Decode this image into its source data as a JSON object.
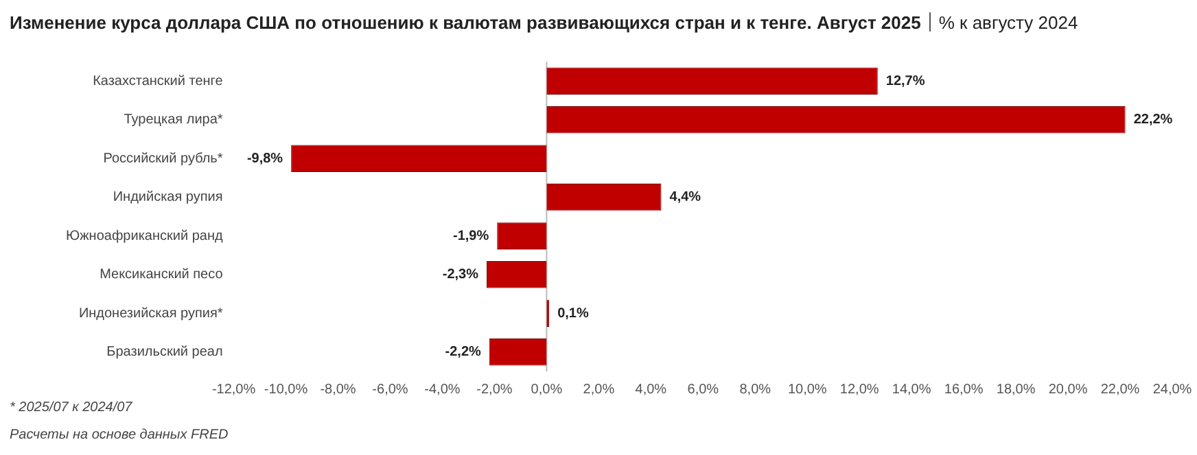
{
  "chart_data": {
    "type": "bar",
    "orientation": "horizontal",
    "title": "Изменение курса доллара США по отношению к валютам развивающихся стран и к тенге. Август 2025",
    "subtitle": "% к августу 2024",
    "categories": [
      "Казахстанский тенге",
      "Турецкая лира*",
      "Российский рубль*",
      "Индийская рупия",
      "Южноафриканский ранд",
      "Мексиканский песо",
      "Индонезийская рупия*",
      "Бразильский реал"
    ],
    "values": [
      12.7,
      22.2,
      -9.8,
      4.4,
      -1.9,
      -2.3,
      0.1,
      -2.2
    ],
    "value_labels": [
      "12,7%",
      "22,2%",
      "-9,8%",
      "4,4%",
      "-1,9%",
      "-2,3%",
      "0,1%",
      "-2,2%"
    ],
    "color": "#c00000",
    "xlim": [
      -12,
      24
    ],
    "xticks": [
      {
        "value": -12,
        "label": "-12,0%"
      },
      {
        "value": -10,
        "label": "-10,0%"
      },
      {
        "value": -8,
        "label": "-8,0%"
      },
      {
        "value": -6,
        "label": "-6,0%"
      },
      {
        "value": -4,
        "label": "-4,0%"
      },
      {
        "value": -2,
        "label": "-2,0%"
      },
      {
        "value": 0,
        "label": "0,0%"
      },
      {
        "value": 2,
        "label": "2,0%"
      },
      {
        "value": 4,
        "label": "4,0%"
      },
      {
        "value": 6,
        "label": "6,0%"
      },
      {
        "value": 8,
        "label": "8,0%"
      },
      {
        "value": 10,
        "label": "10,0%"
      },
      {
        "value": 12,
        "label": "12,0%"
      },
      {
        "value": 14,
        "label": "14,0%"
      },
      {
        "value": 16,
        "label": "16,0%"
      },
      {
        "value": 18,
        "label": "18,0%"
      },
      {
        "value": 20,
        "label": "20,0%"
      },
      {
        "value": 22,
        "label": "22,0%"
      },
      {
        "value": 24,
        "label": "24,0%"
      }
    ],
    "grid": false,
    "legend": false,
    "ref_lines": [
      {
        "axis": "x",
        "value": 0,
        "color": "#bbbbbb"
      }
    ],
    "annotations": [
      "* 2025/07 к 2024/07",
      "Расчеты на основе данных FRED"
    ]
  }
}
